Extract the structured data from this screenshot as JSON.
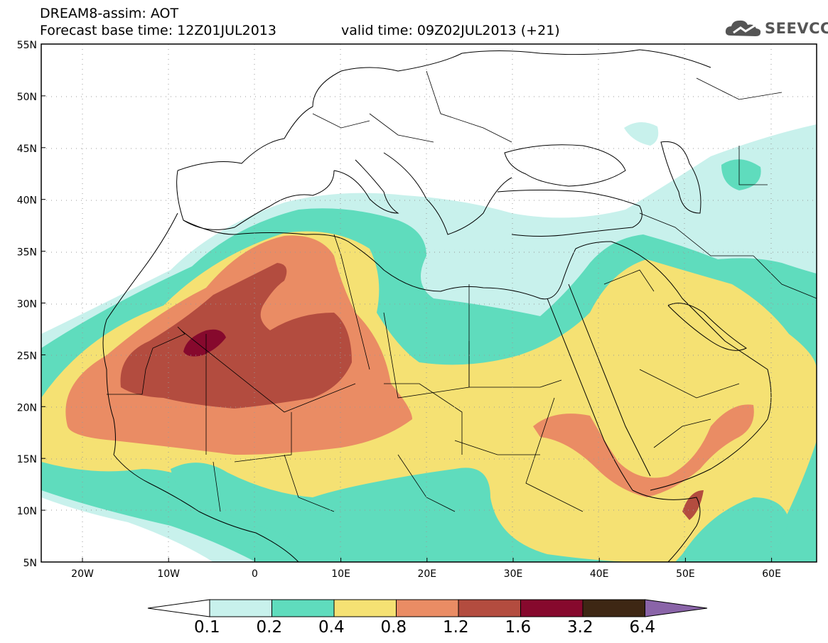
{
  "header": {
    "title": "DREAM8-assim: AOT",
    "base_time": "Forecast base time: 12Z01JUL2013",
    "valid_time": "valid time: 09Z02JUL2013 (+21)"
  },
  "logo": {
    "text": "SEEVCCC",
    "icon": "cloud-icon"
  },
  "map": {
    "lon_range": [
      -25,
      65
    ],
    "lat_range": [
      5,
      55
    ],
    "lat_labels": [
      "55N",
      "50N",
      "45N",
      "40N",
      "35N",
      "30N",
      "25N",
      "20N",
      "15N",
      "10N",
      "5N"
    ],
    "lon_labels": [
      "20W",
      "10W",
      "0",
      "10E",
      "20E",
      "30E",
      "40E",
      "50E",
      "60E"
    ],
    "grid": "dotted",
    "ocean_color": "#ffffff",
    "border_color": "#000000"
  },
  "legend": {
    "colors": [
      "#c8f1ec",
      "#5fdcbd",
      "#f5e173",
      "#ea8c64",
      "#b34c3f",
      "#86092d",
      "#3e2714",
      "#8a64a8"
    ],
    "labels": [
      "0.1",
      "0.2",
      "0.4",
      "0.8",
      "1.2",
      "1.6",
      "3.2",
      "6.4"
    ],
    "arrows": "both-ends"
  }
}
